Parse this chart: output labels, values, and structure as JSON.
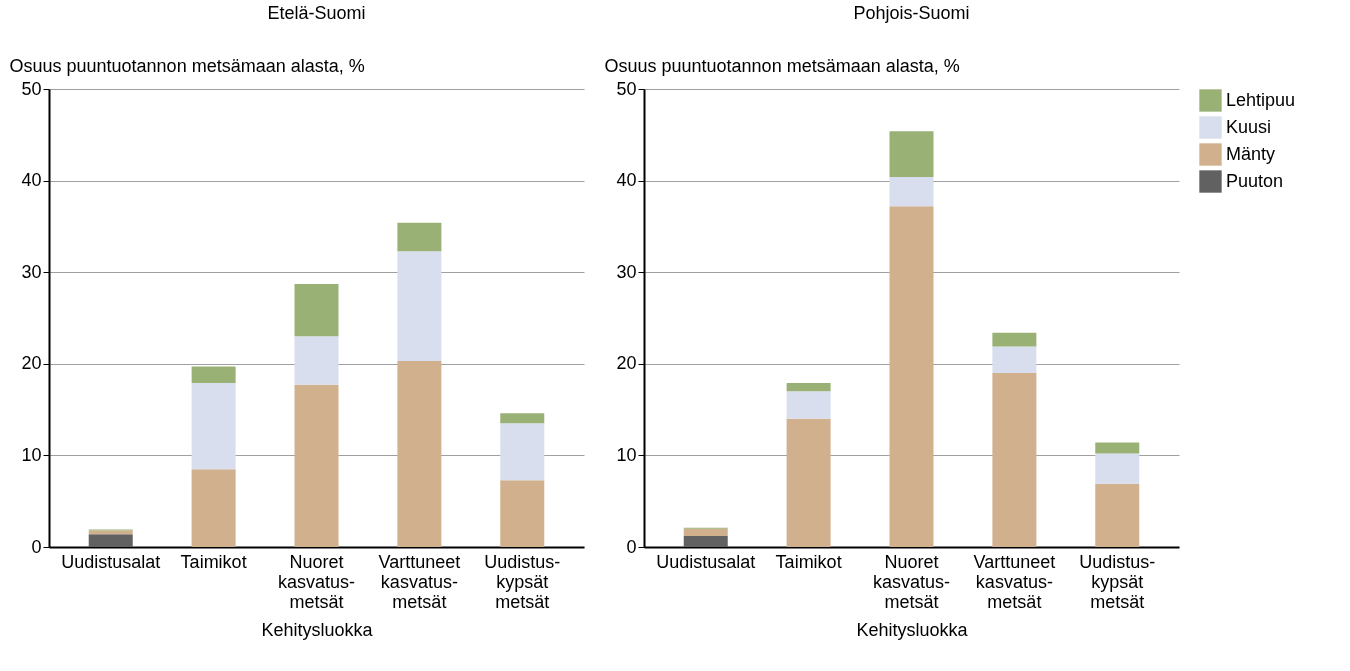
{
  "chart_data": [
    {
      "type": "bar",
      "title": "Etelä-Suomi",
      "ylabel": "Osuus puuntuotannon metsämaan alasta, %",
      "xlabel": "Kehitysluokka",
      "categories": [
        "Uudistusalat",
        "Taimikot",
        "Nuoret kasvatus-metsät",
        "Varttuneet kasvatus-metsät",
        "Uudistus-kypsät metsät"
      ],
      "stacked": true,
      "ylim": [
        0,
        50
      ],
      "yticks": [
        0,
        10,
        20,
        30,
        40,
        50
      ],
      "grid": "y",
      "legend": false,
      "series": [
        {
          "color": "#616161",
          "values": [
            1.4,
            null,
            null,
            null,
            null
          ]
        },
        {
          "color": "#d0b08d",
          "values": [
            0.4,
            8.5,
            17.7,
            20.3,
            7.3
          ]
        },
        {
          "color": "#d8deed",
          "values": [
            null,
            9.4,
            5.3,
            12.0,
            6.2
          ]
        },
        {
          "color": "#9ab176",
          "values": [
            0.1,
            1.8,
            5.7,
            3.1,
            1.1
          ]
        }
      ]
    },
    {
      "type": "bar",
      "title": "Pohjois-Suomi",
      "ylabel": "Osuus puuntuotannon metsämaan alasta, %",
      "xlabel": "Kehitysluokka",
      "categories": [
        "Uudistusalat",
        "Taimikot",
        "Nuoret kasvatus-metsät",
        "Varttuneet kasvatus-metsät",
        "Uudistus-kypsät metsät"
      ],
      "stacked": true,
      "ylim": [
        0,
        50
      ],
      "yticks": [
        0,
        10,
        20,
        30,
        40,
        50
      ],
      "grid": "y",
      "legend": "top right",
      "series": [
        {
          "name": "Puuton",
          "color": "#616161",
          "values": [
            1.2,
            null,
            null,
            null,
            null
          ]
        },
        {
          "name": "Mänty",
          "color": "#d0b08d",
          "values": [
            0.8,
            14.0,
            37.2,
            19.0,
            6.9
          ]
        },
        {
          "name": "Kuusi",
          "color": "#d8deed",
          "values": [
            null,
            3.0,
            3.2,
            2.9,
            3.3
          ]
        },
        {
          "name": "Lehtipuu",
          "color": "#9ab176",
          "values": [
            0.1,
            0.9,
            5.0,
            1.5,
            1.2
          ]
        }
      ]
    }
  ]
}
